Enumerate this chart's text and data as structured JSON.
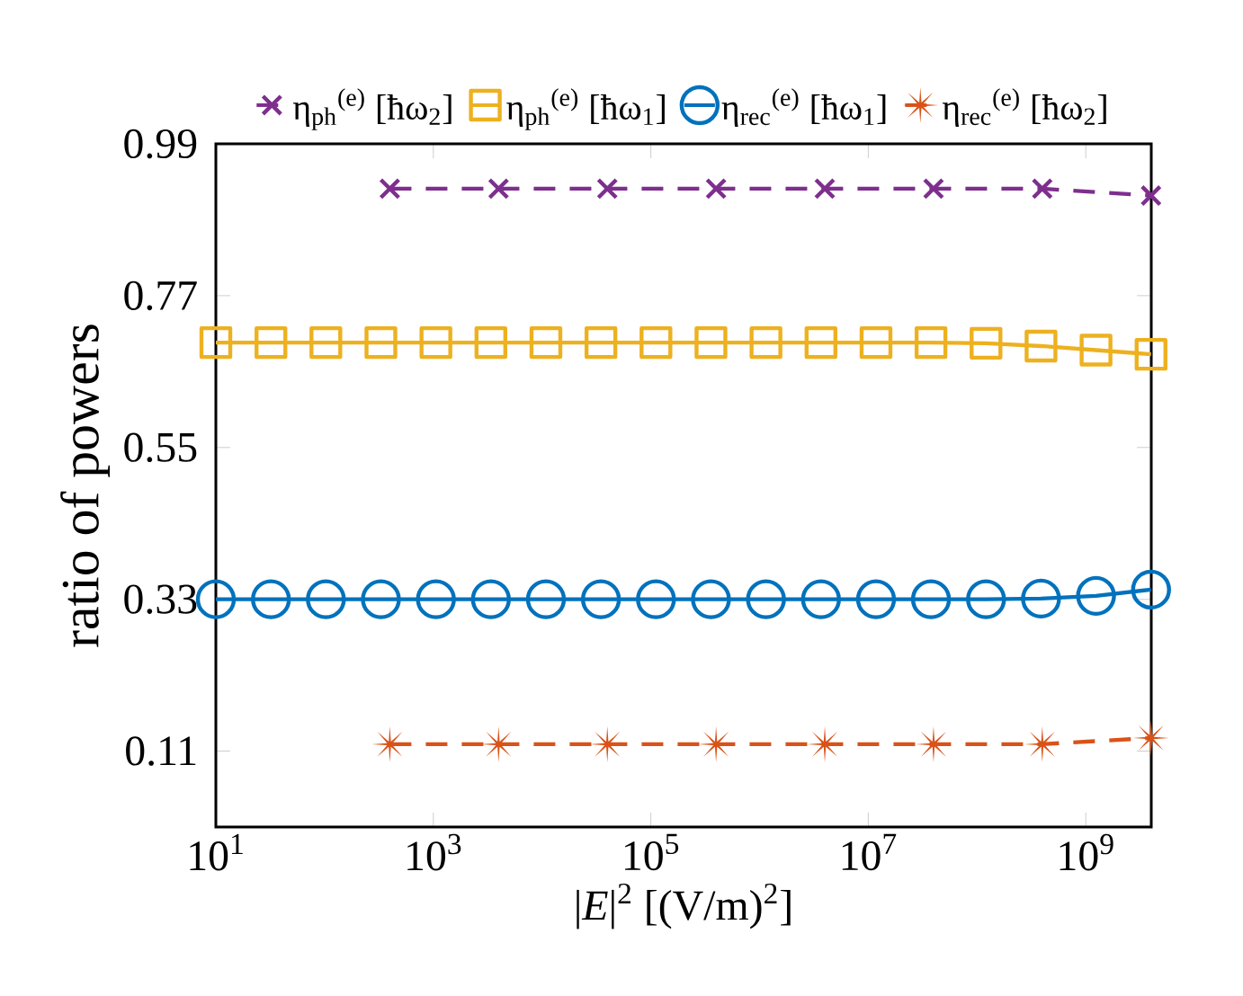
{
  "chart_data": {
    "type": "line",
    "xlabel": "|*E*|$^{2}$ [(V/m)$^{2}$]",
    "ylabel": "ratio of powers",
    "log": "x",
    "xlim": [
      10,
      4000000000.0
    ],
    "ylim": [
      0,
      0.99
    ],
    "xticks": [
      {
        "value": 10,
        "label": "10$^{1}$"
      },
      {
        "value": 1000,
        "label": "10$^{3}$"
      },
      {
        "value": 100000,
        "label": "10$^{5}$"
      },
      {
        "value": 10000000,
        "label": "10$^{7}$"
      },
      {
        "value": 1000000000,
        "label": "10$^{9}$"
      }
    ],
    "yticks": [
      0.11,
      0.33,
      0.55,
      0.77,
      0.99
    ],
    "legend": "top",
    "series": [
      {
        "name": "η$_{ph}$$^{(e)}$ [ħω$_{2}$]",
        "color": "#7e2f8e",
        "marker": "cross",
        "line_style": "dashed",
        "x": [
          398,
          3980,
          39800,
          398000,
          3980000,
          39800000,
          398000000,
          3980000000
        ],
        "values": [
          0.925,
          0.925,
          0.925,
          0.925,
          0.925,
          0.925,
          0.925,
          0.915
        ]
      },
      {
        "name": "η$_{ph}$$^{(e)}$ [ħω$_{1}$]",
        "color": "#edb120",
        "marker": "square",
        "line_style": "solid",
        "x": [
          10,
          32.1,
          102.7,
          329.4,
          1056,
          3383,
          10846,
          34770,
          111450,
          357200,
          1145000,
          3671000,
          11770000,
          37710000,
          120900000,
          387500000,
          1242000000,
          3981000000
        ],
        "values": [
          0.702,
          0.702,
          0.702,
          0.702,
          0.702,
          0.702,
          0.702,
          0.702,
          0.702,
          0.702,
          0.702,
          0.702,
          0.702,
          0.702,
          0.701,
          0.697,
          0.691,
          0.685
        ]
      },
      {
        "name": "η$_{rec}$$^{(e)}$ [ħω$_{1}$]",
        "color": "#0072bd",
        "marker": "circle",
        "line_style": "solid",
        "x": [
          10,
          32.1,
          102.7,
          329.4,
          1056,
          3383,
          10846,
          34770,
          111450,
          357200,
          1145000,
          3671000,
          11770000,
          37710000,
          120900000,
          387500000,
          1242000000,
          3981000000
        ],
        "values": [
          0.33,
          0.33,
          0.33,
          0.33,
          0.33,
          0.33,
          0.33,
          0.33,
          0.33,
          0.33,
          0.33,
          0.33,
          0.33,
          0.33,
          0.33,
          0.331,
          0.335,
          0.344
        ]
      },
      {
        "name": "η$_{rec}$$^{(e)}$ [ħω$_{2}$]",
        "color": "#d95319",
        "marker": "star",
        "line_style": "dashed",
        "x": [
          398,
          3980,
          39800,
          398000,
          3980000,
          39800000,
          398000000,
          3980000000
        ],
        "values": [
          0.12,
          0.12,
          0.12,
          0.12,
          0.12,
          0.12,
          0.12,
          0.129
        ]
      }
    ]
  }
}
